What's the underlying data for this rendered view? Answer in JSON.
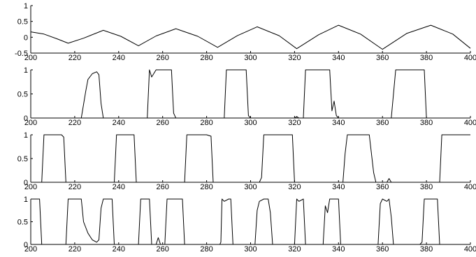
{
  "chart_data": [
    {
      "type": "line",
      "xlim": [
        200,
        400
      ],
      "ylim": [
        -0.5,
        1
      ],
      "xticks": [
        "200",
        "220",
        "240",
        "260",
        "280",
        "300",
        "320",
        "340",
        "360",
        "380",
        "400"
      ],
      "yticks": [
        "-0.5",
        "0",
        "0.5",
        "1"
      ],
      "grid": false,
      "series": [
        {
          "points": [
            [
              200,
              0.17
            ],
            [
              206,
              0.1
            ],
            [
              212,
              -0.05
            ],
            [
              217,
              -0.19
            ],
            [
              224,
              -0.03
            ],
            [
              233,
              0.22
            ],
            [
              241,
              0.03
            ],
            [
              249,
              -0.27
            ],
            [
              257,
              0.04
            ],
            [
              266,
              0.27
            ],
            [
              276,
              0.03
            ],
            [
              285,
              -0.32
            ],
            [
              294,
              0.05
            ],
            [
              303,
              0.33
            ],
            [
              313,
              0.05
            ],
            [
              321,
              -0.36
            ],
            [
              331,
              0.08
            ],
            [
              340,
              0.38
            ],
            [
              350,
              0.1
            ],
            [
              360,
              -0.38
            ],
            [
              371,
              0.12
            ],
            [
              382,
              0.38
            ],
            [
              392,
              0.1
            ],
            [
              400,
              -0.35
            ]
          ]
        }
      ]
    },
    {
      "type": "line",
      "xlim": [
        200,
        400
      ],
      "ylim": [
        0,
        1
      ],
      "xticks": [
        "200",
        "220",
        "240",
        "260",
        "280",
        "300",
        "320",
        "340",
        "360",
        "380",
        "400"
      ],
      "yticks": [
        "0",
        "0.5",
        "1"
      ],
      "grid": false,
      "series": [
        {
          "points": [
            [
              200,
              0
            ],
            [
              223,
              0
            ],
            [
              225,
              0.55
            ],
            [
              226,
              0.8
            ],
            [
              228,
              0.92
            ],
            [
              230,
              0.96
            ],
            [
              231,
              0.9
            ],
            [
              232,
              0.3
            ],
            [
              233,
              0
            ],
            [
              253,
              0
            ],
            [
              254,
              1
            ],
            [
              255,
              0.85
            ],
            [
              257,
              1
            ],
            [
              260,
              1
            ],
            [
              264,
              1
            ],
            [
              265,
              0.1
            ],
            [
              266,
              0
            ],
            [
              288,
              0
            ],
            [
              289,
              1
            ],
            [
              297,
              1
            ],
            [
              298,
              1
            ],
            [
              299,
              0.05
            ],
            [
              300,
              0
            ],
            [
              320,
              0
            ],
            [
              321,
              0.03
            ],
            [
              322,
              0
            ],
            [
              324,
              0
            ],
            [
              325,
              1
            ],
            [
              336,
              1
            ],
            [
              337,
              0.15
            ],
            [
              338,
              0.35
            ],
            [
              339,
              0.05
            ],
            [
              340,
              0
            ],
            [
              364,
              0
            ],
            [
              366,
              1
            ],
            [
              374,
              1
            ],
            [
              375,
              1
            ],
            [
              378,
              1
            ],
            [
              379,
              1
            ],
            [
              380,
              0
            ],
            [
              400,
              0
            ]
          ]
        }
      ]
    },
    {
      "type": "line",
      "xlim": [
        200,
        400
      ],
      "ylim": [
        0,
        1
      ],
      "xticks": [
        "200",
        "220",
        "240",
        "260",
        "280",
        "300",
        "320",
        "340",
        "360",
        "380",
        "400"
      ],
      "yticks": [
        "0",
        "0.5",
        "1"
      ],
      "grid": false,
      "series": [
        {
          "points": [
            [
              200,
              0
            ],
            [
              205,
              0
            ],
            [
              206,
              1
            ],
            [
              210,
              1
            ],
            [
              214,
              1
            ],
            [
              215,
              0.95
            ],
            [
              216,
              0
            ],
            [
              238,
              0
            ],
            [
              239,
              1
            ],
            [
              246,
              1
            ],
            [
              247,
              1
            ],
            [
              248,
              0
            ],
            [
              270,
              0
            ],
            [
              271,
              1
            ],
            [
              280,
              1
            ],
            [
              282,
              0.97
            ],
            [
              283,
              0
            ],
            [
              304,
              0
            ],
            [
              305,
              0.1
            ],
            [
              306,
              1
            ],
            [
              318,
              1
            ],
            [
              319,
              1
            ],
            [
              320,
              0
            ],
            [
              342,
              0
            ],
            [
              343,
              0.6
            ],
            [
              344,
              1
            ],
            [
              354,
              1
            ],
            [
              356,
              0.2
            ],
            [
              357,
              0
            ],
            [
              362,
              0
            ],
            [
              363,
              0.08
            ],
            [
              364,
              0
            ],
            [
              386,
              0
            ],
            [
              387,
              1
            ],
            [
              400,
              1
            ]
          ]
        }
      ]
    },
    {
      "type": "line",
      "xlim": [
        200,
        400
      ],
      "ylim": [
        0,
        1
      ],
      "xticks": [
        "200",
        "220",
        "240",
        "260",
        "280",
        "300",
        "320",
        "340",
        "360",
        "380",
        "400"
      ],
      "yticks": [
        "0",
        "0.5",
        "1"
      ],
      "grid": false,
      "series": [
        {
          "points": [
            [
              200,
              1
            ],
            [
              204,
              1
            ],
            [
              205,
              0
            ],
            [
              216,
              0
            ],
            [
              217,
              1
            ],
            [
              223,
              1
            ],
            [
              224,
              0.5
            ],
            [
              226,
              0.25
            ],
            [
              228,
              0.1
            ],
            [
              230,
              0.05
            ],
            [
              231,
              0.1
            ],
            [
              232,
              0.8
            ],
            [
              233,
              1
            ],
            [
              237,
              1
            ],
            [
              238,
              0
            ],
            [
              249,
              0
            ],
            [
              250,
              1
            ],
            [
              254,
              1
            ],
            [
              255,
              0
            ],
            [
              257,
              0
            ],
            [
              258,
              0.15
            ],
            [
              259,
              0
            ],
            [
              261,
              0
            ],
            [
              262,
              1
            ],
            [
              269,
              1
            ],
            [
              270,
              0
            ],
            [
              286,
              0
            ],
            [
              286.5,
              0.05
            ],
            [
              287,
              1
            ],
            [
              288,
              0.95
            ],
            [
              290,
              1
            ],
            [
              291,
              1
            ],
            [
              292,
              0
            ],
            [
              302,
              0
            ],
            [
              303,
              0.75
            ],
            [
              304,
              0.95
            ],
            [
              306,
              1
            ],
            [
              308,
              1
            ],
            [
              309,
              0.7
            ],
            [
              310,
              0
            ],
            [
              320,
              0
            ],
            [
              321,
              1
            ],
            [
              322,
              0.95
            ],
            [
              324,
              1
            ],
            [
              325,
              0
            ],
            [
              333,
              0
            ],
            [
              334,
              0.85
            ],
            [
              335,
              0.7
            ],
            [
              336,
              1
            ],
            [
              340,
              1
            ],
            [
              341,
              0
            ],
            [
              358,
              0
            ],
            [
              359,
              0.9
            ],
            [
              360,
              1
            ],
            [
              362,
              0.95
            ],
            [
              363,
              1
            ],
            [
              364,
              0.6
            ],
            [
              365,
              0
            ],
            [
              377,
              0
            ],
            [
              378,
              0.05
            ],
            [
              379,
              1
            ],
            [
              385,
              1
            ],
            [
              386,
              0
            ],
            [
              400,
              0
            ]
          ]
        }
      ]
    }
  ]
}
